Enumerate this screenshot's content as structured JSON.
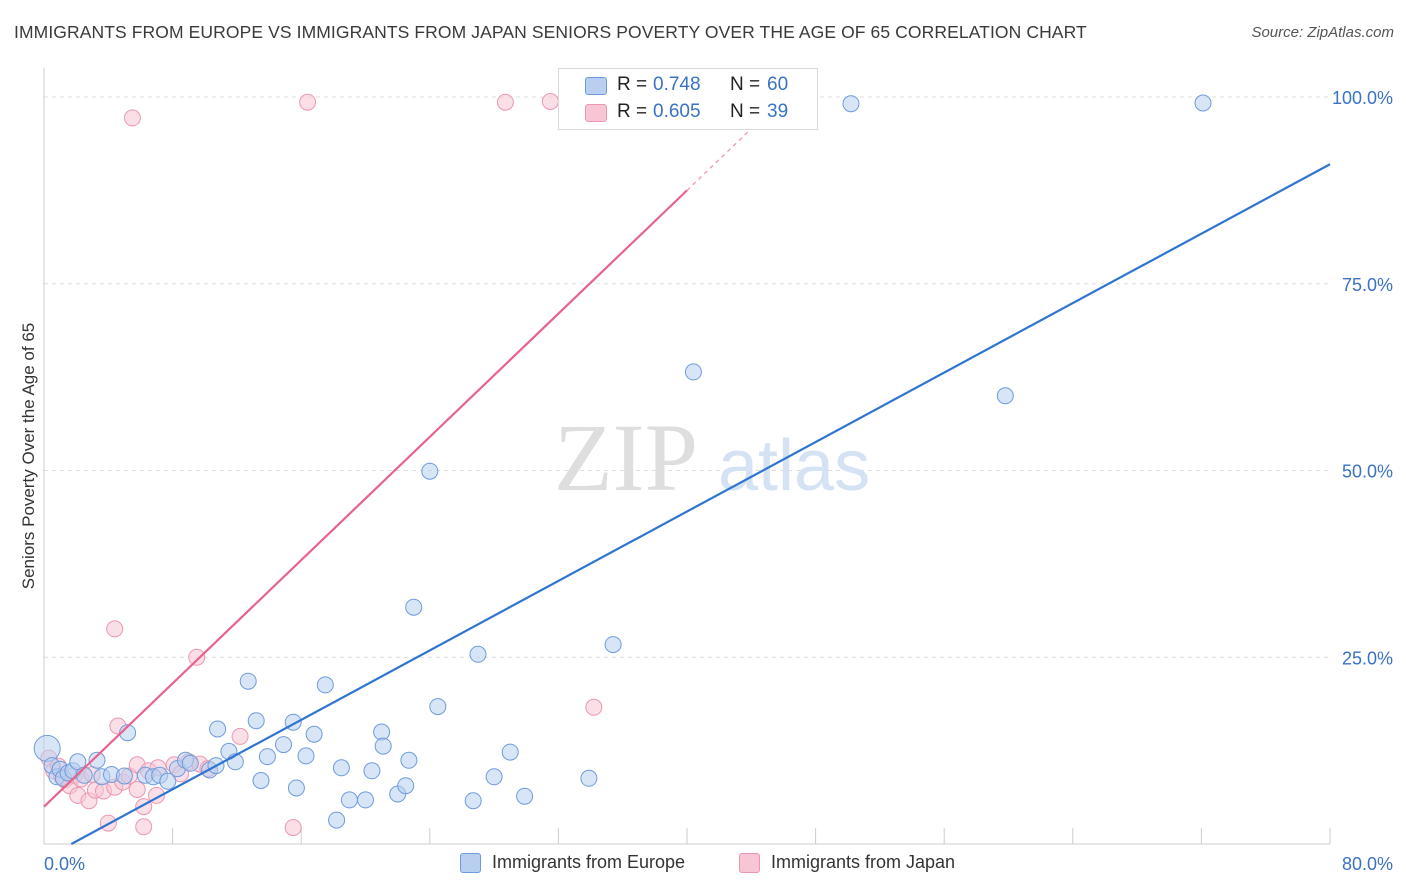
{
  "title": "IMMIGRANTS FROM EUROPE VS IMMIGRANTS FROM JAPAN SENIORS POVERTY OVER THE AGE OF 65 CORRELATION CHART",
  "source": "Source: ZipAtlas.com",
  "watermark": {
    "zip": "ZIP",
    "atlas": "atlas"
  },
  "legend_top": {
    "rows": [
      {
        "r_label": "R =",
        "r_value": "0.748",
        "n_label": "N =",
        "n_value": "60"
      },
      {
        "r_label": "R =",
        "r_value": "0.605",
        "n_label": "N =",
        "n_value": "39"
      }
    ]
  },
  "legend_bottom": {
    "europe": "Immigrants from Europe",
    "japan": "Immigrants from Japan"
  },
  "colors": {
    "europe_fill": "#b8cff0",
    "europe_stroke": "#6f9bdc",
    "europe_line": "#2f75d0",
    "japan_fill": "#f7c5d3",
    "japan_stroke": "#ec97b1",
    "japan_line": "#e8638c",
    "tick_label": "#3a72c4",
    "grid": "#dddddd"
  },
  "chart_data": {
    "type": "scatter",
    "ylabel": "Seniors Poverty Over the Age of 65",
    "xlim": [
      0,
      80
    ],
    "ylim": [
      0,
      100
    ],
    "x_tick_labels": [
      "0.0%",
      "80.0%"
    ],
    "y_ticks": [
      25,
      50,
      75,
      100
    ],
    "y_tick_labels": [
      "25.0%",
      "50.0%",
      "75.0%",
      "100.0%"
    ],
    "grid": true,
    "series": [
      {
        "name": "Immigrants from Europe",
        "r": 0.748,
        "n": 60,
        "trend": {
          "x1": 1.7,
          "y1": 0,
          "x2": 80,
          "y2": 91
        },
        "points": [
          [
            0.2,
            12.8
          ],
          [
            0.5,
            10.5
          ],
          [
            0.8,
            9.0
          ],
          [
            1.0,
            10.0
          ],
          [
            1.2,
            8.8
          ],
          [
            1.5,
            9.5
          ],
          [
            1.8,
            9.8
          ],
          [
            2.1,
            11.0
          ],
          [
            2.5,
            9.2
          ],
          [
            3.3,
            11.2
          ],
          [
            3.6,
            9.0
          ],
          [
            4.2,
            9.3
          ],
          [
            5.0,
            9.1
          ],
          [
            5.2,
            14.9
          ],
          [
            6.3,
            9.2
          ],
          [
            6.8,
            9.0
          ],
          [
            7.2,
            9.2
          ],
          [
            7.7,
            8.4
          ],
          [
            8.3,
            10.1
          ],
          [
            8.8,
            11.2
          ],
          [
            9.1,
            10.8
          ],
          [
            10.3,
            9.9
          ],
          [
            10.7,
            10.5
          ],
          [
            10.8,
            15.4
          ],
          [
            11.5,
            12.4
          ],
          [
            11.9,
            11.0
          ],
          [
            12.7,
            21.8
          ],
          [
            13.2,
            16.5
          ],
          [
            13.5,
            8.5
          ],
          [
            13.9,
            11.7
          ],
          [
            14.9,
            13.3
          ],
          [
            15.5,
            16.3
          ],
          [
            15.7,
            7.5
          ],
          [
            16.3,
            11.8
          ],
          [
            16.8,
            14.7
          ],
          [
            17.5,
            21.3
          ],
          [
            18.2,
            3.2
          ],
          [
            18.5,
            10.2
          ],
          [
            19.0,
            5.9
          ],
          [
            20.0,
            5.9
          ],
          [
            20.4,
            9.8
          ],
          [
            21.0,
            15.0
          ],
          [
            21.1,
            13.1
          ],
          [
            22.0,
            6.7
          ],
          [
            22.5,
            7.8
          ],
          [
            22.7,
            11.2
          ],
          [
            23.0,
            31.7
          ],
          [
            24.5,
            18.4
          ],
          [
            24.0,
            49.9
          ],
          [
            26.7,
            5.8
          ],
          [
            27.0,
            25.4
          ],
          [
            28.0,
            9.0
          ],
          [
            29.0,
            12.3
          ],
          [
            29.9,
            6.4
          ],
          [
            33.9,
            8.8
          ],
          [
            35.4,
            26.7
          ],
          [
            40.4,
            63.2
          ],
          [
            50.2,
            99.1
          ],
          [
            59.8,
            60.0
          ],
          [
            72.1,
            99.2
          ]
        ]
      },
      {
        "name": "Immigrants from Japan",
        "r": 0.605,
        "n": 39,
        "trend": {
          "x1": 0,
          "y1": 5,
          "x2": 40.0,
          "y2": 87.5
        },
        "points": [
          [
            0.3,
            11.5
          ],
          [
            0.6,
            9.8
          ],
          [
            0.9,
            10.4
          ],
          [
            1.1,
            9.0
          ],
          [
            1.3,
            8.6
          ],
          [
            1.6,
            7.8
          ],
          [
            1.9,
            9.2
          ],
          [
            2.1,
            6.5
          ],
          [
            2.3,
            8.7
          ],
          [
            2.8,
            5.8
          ],
          [
            3.0,
            9.3
          ],
          [
            3.2,
            7.2
          ],
          [
            3.7,
            7.1
          ],
          [
            4.0,
            2.8
          ],
          [
            4.4,
            7.6
          ],
          [
            4.4,
            28.8
          ],
          [
            4.6,
            15.8
          ],
          [
            4.9,
            8.3
          ],
          [
            5.3,
            9.1
          ],
          [
            5.8,
            7.3
          ],
          [
            5.8,
            10.6
          ],
          [
            6.2,
            2.3
          ],
          [
            6.2,
            5.0
          ],
          [
            6.5,
            9.8
          ],
          [
            7.0,
            6.5
          ],
          [
            7.1,
            10.2
          ],
          [
            8.1,
            10.6
          ],
          [
            8.5,
            9.4
          ],
          [
            9.0,
            11.0
          ],
          [
            9.5,
            25.0
          ],
          [
            9.7,
            10.7
          ],
          [
            10.2,
            10.1
          ],
          [
            12.2,
            14.4
          ],
          [
            5.5,
            97.2
          ],
          [
            15.5,
            2.2
          ],
          [
            16.4,
            99.3
          ],
          [
            28.7,
            99.3
          ],
          [
            31.5,
            99.4
          ],
          [
            34.2,
            18.3
          ]
        ]
      }
    ]
  }
}
